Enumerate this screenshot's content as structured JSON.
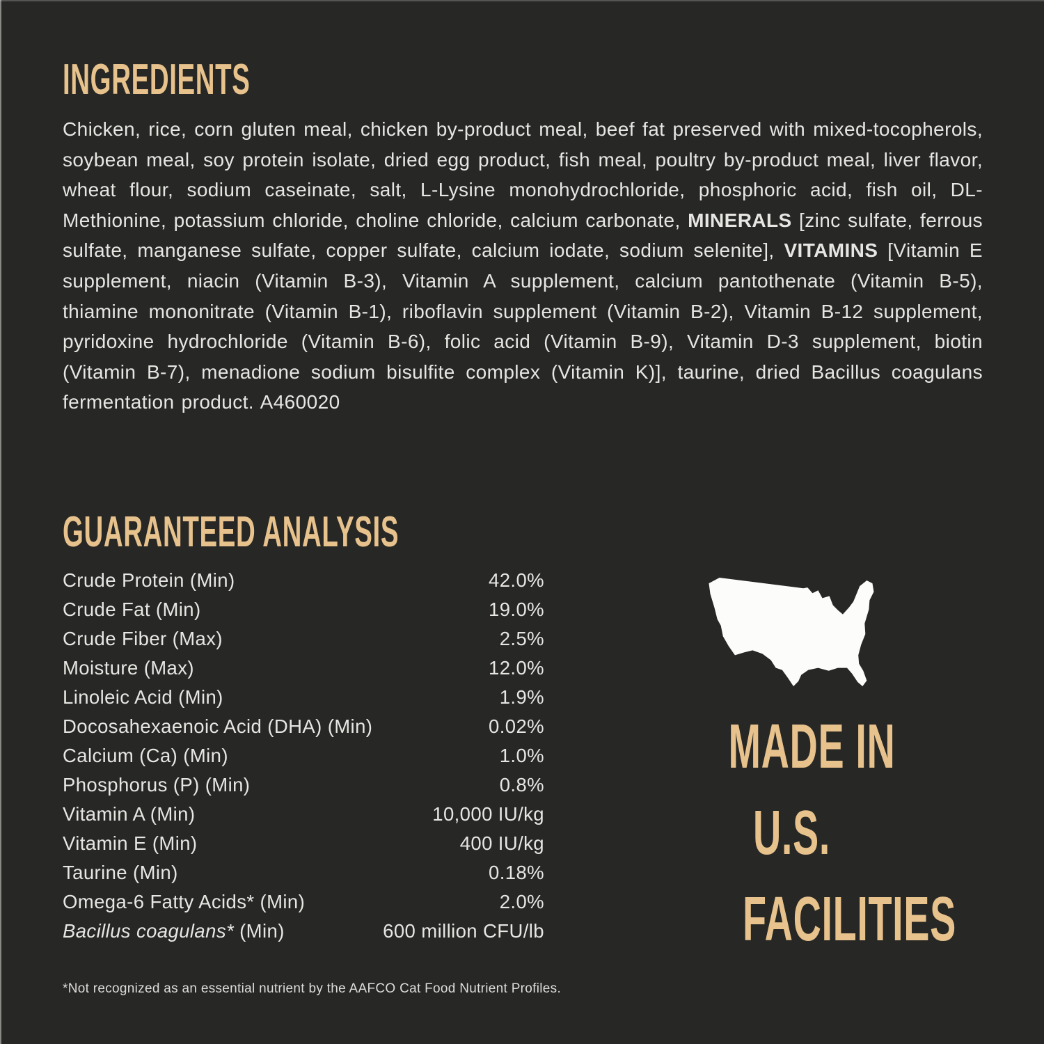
{
  "colors": {
    "background": "#272725",
    "heading_gold": "#e7c28c",
    "body_text": "#e7e6e3",
    "map_white": "#fcfcfa"
  },
  "ingredients": {
    "heading": "INGREDIENTS",
    "segments": [
      {
        "text": "Chicken, rice, corn gluten meal, chicken by-product meal, beef fat preserved with mixed-tocopherols, soybean meal, soy protein isolate, dried egg product, fish meal, poultry by-product meal, liver flavor, wheat flour, sodium caseinate, salt, L-Lysine monohydrochloride, phosphoric acid, fish oil, DL-Methionine, potassium chloride, choline chloride, calcium carbonate, ",
        "bold": false
      },
      {
        "text": "MINERALS",
        "bold": true
      },
      {
        "text": " [zinc sulfate, ferrous sulfate, manganese sulfate, copper sulfate, calcium iodate, sodium selenite], ",
        "bold": false
      },
      {
        "text": "VITAMINS",
        "bold": true
      },
      {
        "text": " [Vitamin E supplement, niacin (Vitamin B-3), Vitamin A supplement, calcium pantothenate (Vitamin B-5), thiamine mononitrate (Vitamin B-1), riboflavin supplement (Vitamin B-2), Vitamin B-12 supplement, pyridoxine hydrochloride (Vitamin B-6), folic acid (Vitamin B-9), Vitamin D-3 supplement, biotin (Vitamin B-7), menadione sodium bisulfite complex (Vitamin K)], taurine, dried Bacillus coagulans fermentation product. A460020",
        "bold": false
      }
    ]
  },
  "analysis": {
    "heading": "GUARANTEED ANALYSIS",
    "rows": [
      {
        "label_parts": [
          {
            "text": "Crude Protein (Min)"
          }
        ],
        "value": "42.0%"
      },
      {
        "label_parts": [
          {
            "text": "Crude Fat (Min)"
          }
        ],
        "value": "19.0%"
      },
      {
        "label_parts": [
          {
            "text": "Crude Fiber (Max)"
          }
        ],
        "value": "2.5%"
      },
      {
        "label_parts": [
          {
            "text": "Moisture (Max)"
          }
        ],
        "value": "12.0%"
      },
      {
        "label_parts": [
          {
            "text": "Linoleic Acid (Min)"
          }
        ],
        "value": "1.9%"
      },
      {
        "label_parts": [
          {
            "text": "Docosahexaenoic Acid (DHA) (Min)"
          }
        ],
        "value": "0.02%"
      },
      {
        "label_parts": [
          {
            "text": "Calcium (Ca) (Min)"
          }
        ],
        "value": "1.0%"
      },
      {
        "label_parts": [
          {
            "text": "Phosphorus (P) (Min)"
          }
        ],
        "value": "0.8%"
      },
      {
        "label_parts": [
          {
            "text": "Vitamin A (Min)"
          }
        ],
        "value": "10,000 IU/kg"
      },
      {
        "label_parts": [
          {
            "text": "Vitamin E (Min)"
          }
        ],
        "value": "400 IU/kg"
      },
      {
        "label_parts": [
          {
            "text": "Taurine (Min)"
          }
        ],
        "value": "0.18%"
      },
      {
        "label_parts": [
          {
            "text": "Omega-6 Fatty Acids* (Min)"
          }
        ],
        "value": "2.0%"
      },
      {
        "label_parts": [
          {
            "text": "Bacillus coagulans*",
            "italic": true
          },
          {
            "text": " (Min)"
          }
        ],
        "value": "600 million CFU/lb"
      }
    ],
    "footnote": "*Not recognized as an essential nutrient by the AAFCO Cat Food Nutrient Profiles."
  },
  "made_in": {
    "icon": "usa-map",
    "lines": [
      "MADE IN",
      "U.S.",
      "FACILITIES"
    ]
  }
}
